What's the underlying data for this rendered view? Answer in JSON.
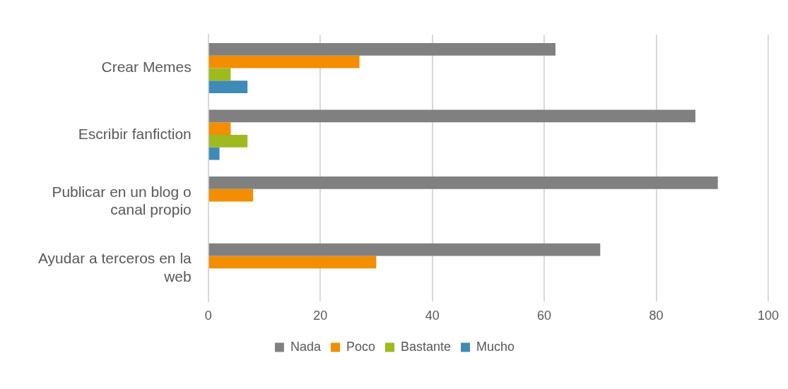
{
  "chart_data": {
    "type": "bar",
    "orientation": "horizontal",
    "categories": [
      "Crear Memes",
      "Escribir fanfiction",
      "Publicar en un blog o canal propio",
      "Ayudar a terceros en la web"
    ],
    "series": [
      {
        "name": "Nada",
        "color": "#808080",
        "values": [
          62,
          87,
          91,
          70
        ]
      },
      {
        "name": "Poco",
        "color": "#f28e00",
        "values": [
          27,
          4,
          8,
          30
        ]
      },
      {
        "name": "Bastante",
        "color": "#9dba1f",
        "values": [
          4,
          7,
          0,
          0
        ]
      },
      {
        "name": "Mucho",
        "color": "#3f8ab7",
        "values": [
          7,
          2,
          0,
          0
        ]
      }
    ],
    "xlim": [
      0,
      100
    ],
    "xticks": [
      0,
      20,
      40,
      60,
      80,
      100
    ],
    "grid": "x",
    "legend": "bottom"
  }
}
